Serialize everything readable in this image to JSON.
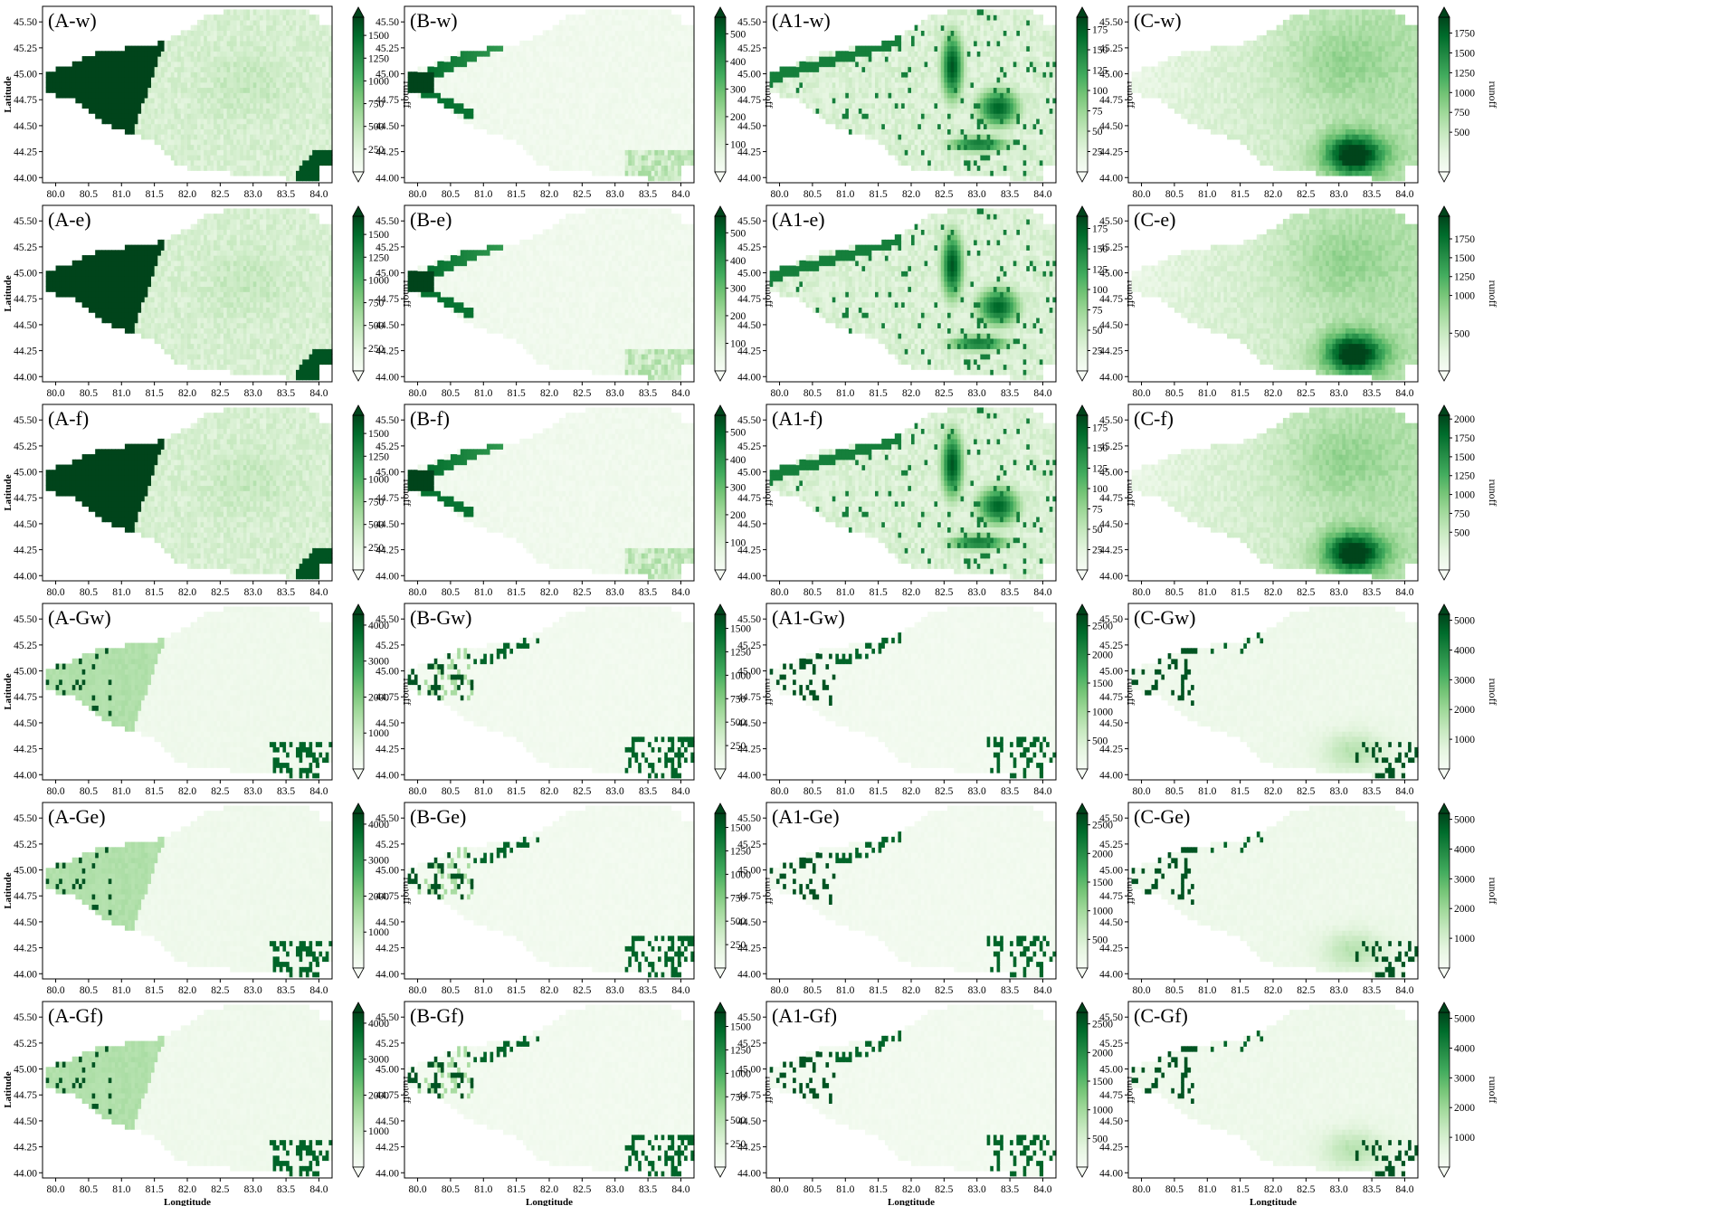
{
  "chart_data": {
    "type": "heatmap",
    "grid": "6 rows x 4 columns of runoff maps",
    "colormap": "Greens",
    "colormap_stops": [
      "#f7fcf5",
      "#e5f5e0",
      "#c7e9c0",
      "#a1d99b",
      "#74c476",
      "#41ab5d",
      "#238b45",
      "#006d2c",
      "#00441b"
    ],
    "xlabel": "Longtitude",
    "ylabel": "Latitude",
    "xlim": [
      79.8,
      84.2
    ],
    "ylim": [
      43.95,
      45.65
    ],
    "xticks": [
      "80.0",
      "80.5",
      "81.0",
      "81.5",
      "82.0",
      "82.5",
      "83.0",
      "83.5",
      "84.0"
    ],
    "yticks": [
      "44.00",
      "44.25",
      "44.50",
      "44.75",
      "45.00",
      "45.25",
      "45.50"
    ],
    "colorbar_label": "runoff",
    "colorbar_extend": "both",
    "panels": [
      {
        "title": "(A-w)",
        "pattern": "A",
        "vmax": 1700,
        "cbar_ticks": [
          250,
          500,
          750,
          1000,
          1250,
          1500
        ]
      },
      {
        "title": "(B-w)",
        "pattern": "B",
        "vmax": 560,
        "cbar_ticks": [
          100,
          200,
          300,
          400,
          500
        ]
      },
      {
        "title": "(A1-w)",
        "pattern": "A1",
        "vmax": 190,
        "cbar_ticks": [
          25,
          50,
          75,
          100,
          125,
          150,
          175
        ]
      },
      {
        "title": "(C-w)",
        "pattern": "C",
        "vmax": 1950,
        "cbar_ticks": [
          500,
          750,
          1000,
          1250,
          1500,
          1750
        ]
      },
      {
        "title": "(A-e)",
        "pattern": "A",
        "vmax": 1700,
        "cbar_ticks": [
          250,
          500,
          750,
          1000,
          1250,
          1500
        ]
      },
      {
        "title": "(B-e)",
        "pattern": "B",
        "vmax": 560,
        "cbar_ticks": [
          100,
          200,
          300,
          400,
          500
        ]
      },
      {
        "title": "(A1-e)",
        "pattern": "A1",
        "vmax": 190,
        "cbar_ticks": [
          25,
          50,
          75,
          100,
          125,
          150,
          175
        ]
      },
      {
        "title": "(C-e)",
        "pattern": "C",
        "vmax": 2050,
        "cbar_ticks": [
          500,
          1000,
          1250,
          1500,
          1750
        ]
      },
      {
        "title": "(A-f)",
        "pattern": "A",
        "vmax": 1700,
        "cbar_ticks": [
          250,
          500,
          750,
          1000,
          1250,
          1500
        ]
      },
      {
        "title": "(B-f)",
        "pattern": "B",
        "vmax": 560,
        "cbar_ticks": [
          100,
          200,
          300,
          400,
          500
        ]
      },
      {
        "title": "(A1-f)",
        "pattern": "A1",
        "vmax": 190,
        "cbar_ticks": [
          25,
          50,
          75,
          100,
          125,
          150,
          175
        ]
      },
      {
        "title": "(C-f)",
        "pattern": "C",
        "vmax": 2050,
        "cbar_ticks": [
          500,
          750,
          1000,
          1250,
          1500,
          1750,
          2000
        ]
      },
      {
        "title": "(A-Gw)",
        "pattern": "AG",
        "vmax": 4300,
        "cbar_ticks": [
          1000,
          2000,
          3000,
          4000
        ]
      },
      {
        "title": "(B-Gw)",
        "pattern": "BG",
        "vmax": 1650,
        "cbar_ticks": [
          250,
          500,
          750,
          1000,
          1250,
          1500
        ]
      },
      {
        "title": "(A1-Gw)",
        "pattern": "G",
        "vmax": 2700,
        "cbar_ticks": [
          500,
          1000,
          1500,
          2000,
          2500
        ]
      },
      {
        "title": "(C-Gw)",
        "pattern": "CG",
        "vmax": 5200,
        "cbar_ticks": [
          1000,
          2000,
          3000,
          4000,
          5000
        ]
      },
      {
        "title": "(A-Ge)",
        "pattern": "AG",
        "vmax": 4300,
        "cbar_ticks": [
          1000,
          2000,
          3000,
          4000
        ]
      },
      {
        "title": "(B-Ge)",
        "pattern": "BG",
        "vmax": 1650,
        "cbar_ticks": [
          250,
          500,
          750,
          1000,
          1250,
          1500
        ]
      },
      {
        "title": "(A1-Ge)",
        "pattern": "G",
        "vmax": 2700,
        "cbar_ticks": [
          500,
          1000,
          1500,
          2000,
          2500
        ]
      },
      {
        "title": "(C-Ge)",
        "pattern": "CG",
        "vmax": 5200,
        "cbar_ticks": [
          1000,
          2000,
          3000,
          4000,
          5000
        ]
      },
      {
        "title": "(A-Gf)",
        "pattern": "AG",
        "vmax": 4300,
        "cbar_ticks": [
          1000,
          2000,
          3000,
          4000
        ]
      },
      {
        "title": "(B-Gf)",
        "pattern": "BG",
        "vmax": 1650,
        "cbar_ticks": [
          250,
          500,
          750,
          1000,
          1250,
          1500
        ]
      },
      {
        "title": "(A1-Gf)",
        "pattern": "G",
        "vmax": 2700,
        "cbar_ticks": [
          500,
          1000,
          1500,
          2000,
          2500
        ]
      },
      {
        "title": "(C-Gf)",
        "pattern": "CG",
        "vmax": 5200,
        "cbar_ticks": [
          1000,
          2000,
          3000,
          4000,
          5000
        ]
      }
    ]
  }
}
